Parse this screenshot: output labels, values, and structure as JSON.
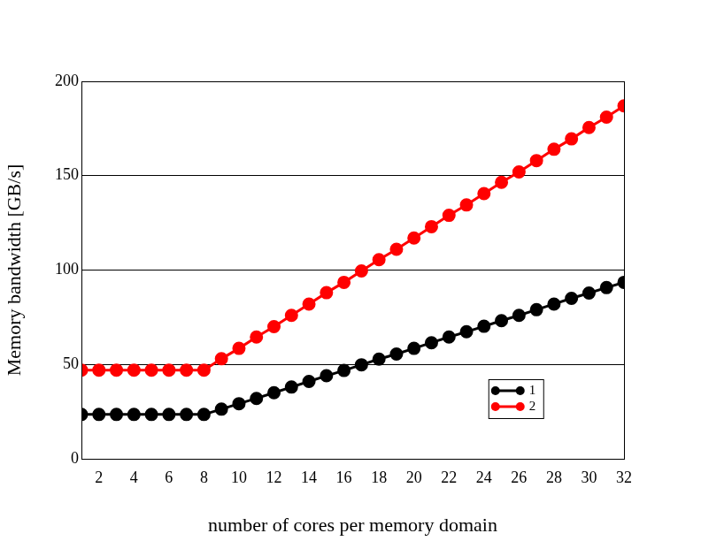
{
  "chart_data": {
    "type": "line",
    "xlabel": "number of cores per memory domain",
    "ylabel": "Memory bandwidth [GB/s]",
    "x": [
      1,
      2,
      3,
      4,
      5,
      6,
      7,
      8,
      9,
      10,
      11,
      12,
      13,
      14,
      15,
      16,
      17,
      18,
      19,
      20,
      21,
      22,
      23,
      24,
      25,
      26,
      27,
      28,
      29,
      30,
      31,
      32
    ],
    "series": [
      {
        "name": "1",
        "color": "#000000",
        "marker": "circle",
        "line_style": "solid",
        "values": [
          23.5,
          23.5,
          23.5,
          23.5,
          23.5,
          23.5,
          23.5,
          23.5,
          26.3,
          29.2,
          32,
          35,
          38,
          41,
          44,
          46.8,
          49.8,
          52.8,
          55.5,
          58.5,
          61.5,
          64.5,
          67.3,
          70.2,
          73.2,
          76,
          79,
          82,
          85,
          87.8,
          90.7,
          93.5
        ]
      },
      {
        "name": "2",
        "color": "#ff0000",
        "marker": "circle",
        "line_style": "solid",
        "values": [
          47,
          47,
          47,
          47,
          47,
          47,
          47,
          47,
          53,
          58.5,
          64.5,
          70,
          76,
          82,
          88,
          93.5,
          99.5,
          105.5,
          111,
          117,
          123,
          129,
          134.5,
          140.5,
          146.5,
          152,
          158,
          164,
          169.5,
          175.5,
          181,
          187
        ]
      }
    ],
    "xlim": [
      1,
      32
    ],
    "xticks": [
      2,
      4,
      6,
      8,
      10,
      12,
      14,
      16,
      18,
      20,
      22,
      24,
      26,
      28,
      30,
      32
    ],
    "ylim": [
      0,
      200
    ],
    "yticks": [
      0,
      50,
      100,
      150,
      200
    ],
    "grid": true,
    "legend": "lower right"
  }
}
